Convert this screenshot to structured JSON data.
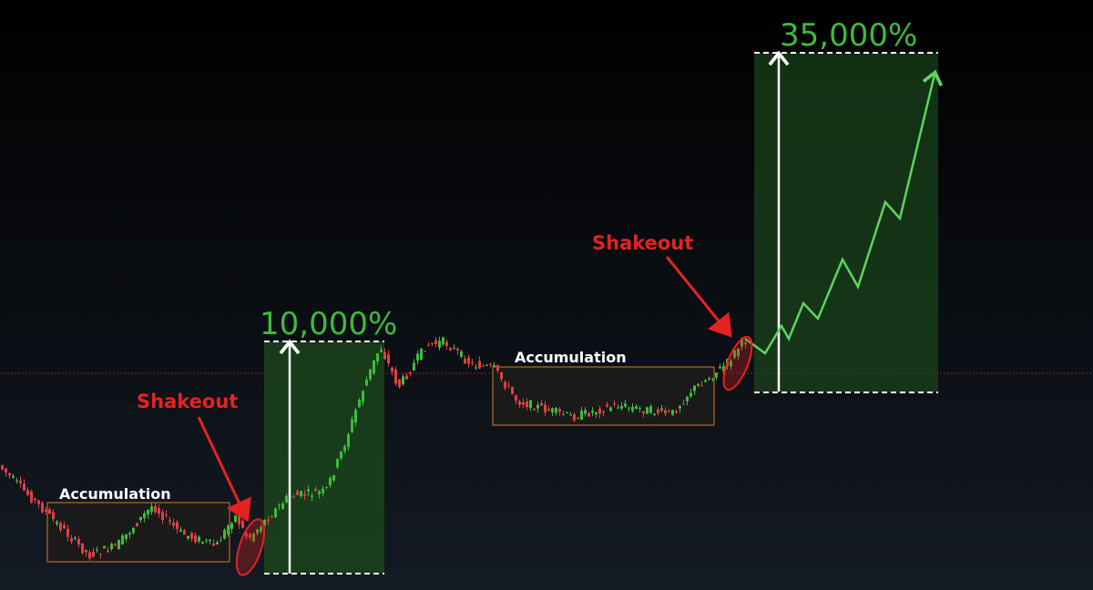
{
  "gains": [
    "10,000%",
    "35,000%"
  ],
  "shakeouts": [
    "Shakeout",
    "Shakeout"
  ],
  "accumulation": [
    "Accumulation",
    "Accumulation"
  ]
}
